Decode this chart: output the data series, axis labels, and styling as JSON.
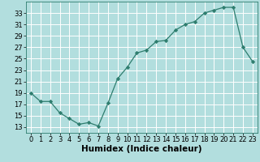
{
  "title": "",
  "xlabel": "Humidex (Indice chaleur)",
  "ylabel": "",
  "x": [
    0,
    1,
    2,
    3,
    4,
    5,
    6,
    7,
    8,
    9,
    10,
    11,
    12,
    13,
    14,
    15,
    16,
    17,
    18,
    19,
    20,
    21,
    22,
    23
  ],
  "y": [
    19,
    17.5,
    17.5,
    15.5,
    14.5,
    13.5,
    13.8,
    13.2,
    17.2,
    21.5,
    23.5,
    26.0,
    26.5,
    28.0,
    28.2,
    30.0,
    31.0,
    31.5,
    33.0,
    33.5,
    34.0,
    34.0,
    27.0,
    24.5
  ],
  "ylim": [
    12,
    35
  ],
  "xlim": [
    -0.5,
    23.5
  ],
  "yticks": [
    13,
    15,
    17,
    19,
    21,
    23,
    25,
    27,
    29,
    31,
    33
  ],
  "xticks": [
    0,
    1,
    2,
    3,
    4,
    5,
    6,
    7,
    8,
    9,
    10,
    11,
    12,
    13,
    14,
    15,
    16,
    17,
    18,
    19,
    20,
    21,
    22,
    23
  ],
  "line_color": "#2e7d6e",
  "marker_color": "#2e7d6e",
  "bg_color": "#b2dede",
  "grid_color": "#ffffff",
  "tick_label_fontsize": 6.0,
  "xlabel_fontsize": 7.5
}
